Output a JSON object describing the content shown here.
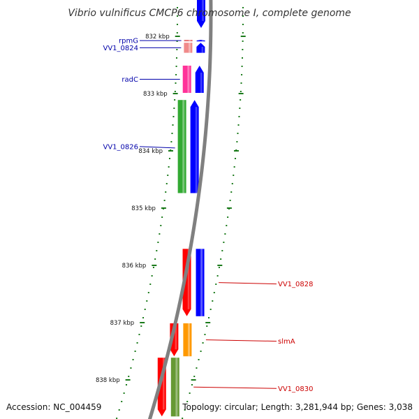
{
  "title": "Vibrio vulnificus CMCP6 chromosome I, complete genome",
  "footer": {
    "accession": "Accession: NC_004459",
    "topology": "Topology: circular; Length: 3,281,944 bp; Genes: 3,038"
  },
  "colors": {
    "forward_cds": "#0000ff",
    "reverse_cds": "#ff0000",
    "backbone": "#808080",
    "tick": "#1a7a1a",
    "forward_label": "#0000aa",
    "reverse_label": "#cc0000"
  },
  "ticks": [
    {
      "label": "832 kbp",
      "kbp": 832
    },
    {
      "label": "833 kbp",
      "kbp": 833
    },
    {
      "label": "834 kbp",
      "kbp": 834
    },
    {
      "label": "835 kbp",
      "kbp": 835
    },
    {
      "label": "836 kbp",
      "kbp": 836
    },
    {
      "label": "837 kbp",
      "kbp": 837
    },
    {
      "label": "838 kbp",
      "kbp": 838
    }
  ],
  "features": [
    {
      "name": "rpmG",
      "start_kbp": 832.05,
      "end_kbp": 832.1,
      "strand": "+",
      "cog_color": "#e57373"
    },
    {
      "name": "VV1_0824",
      "start_kbp": 832.1,
      "end_kbp": 832.3,
      "strand": "+",
      "cog_color": "#f08a8a"
    },
    {
      "name": "radC",
      "start_kbp": 832.5,
      "end_kbp": 833.0,
      "strand": "+",
      "cog_color": "#ff3399"
    },
    {
      "name": "VV1_0826",
      "start_kbp": 833.1,
      "end_kbp": 834.75,
      "strand": "+",
      "cog_color": "#33aa33"
    },
    {
      "name": "VV1_0828",
      "start_kbp": 835.7,
      "end_kbp": 836.9,
      "strand": "-",
      "cog_color": "#0000ff"
    },
    {
      "name": "slmA",
      "start_kbp": 837.0,
      "end_kbp": 837.6,
      "strand": "-",
      "cog_color": "#ff9900"
    },
    {
      "name": "VV1_0830",
      "start_kbp": 837.6,
      "end_kbp": 838.65,
      "strand": "-",
      "cog_color": "#669933"
    }
  ]
}
